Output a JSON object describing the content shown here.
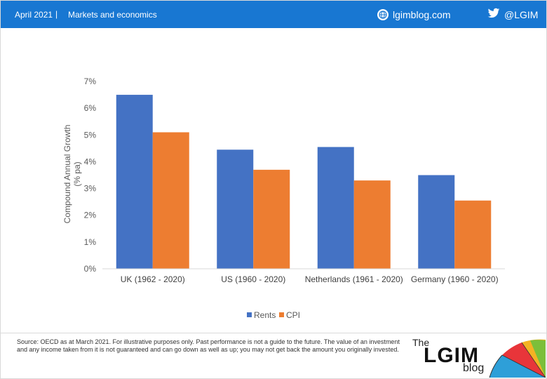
{
  "header": {
    "date": "April 2021",
    "separator": "|",
    "section": "Markets and economics",
    "site": "lgimblog.com",
    "twitter": "@LGIM",
    "background": "#1877d2"
  },
  "chart_data": {
    "type": "bar",
    "categories": [
      "UK (1962 - 2020)",
      "US (1960 - 2020)",
      "Netherlands (1961 - 2020)",
      "Germany (1960 - 2020)"
    ],
    "series": [
      {
        "name": "Rents",
        "values": [
          6.5,
          4.45,
          4.55,
          3.5
        ],
        "color": "#4472c4"
      },
      {
        "name": "CPI",
        "values": [
          5.1,
          3.7,
          3.3,
          2.55
        ],
        "color": "#ed7d31"
      }
    ],
    "ylabel_line1": "Compound Annual Growth",
    "ylabel_line2": "(% pa)",
    "ylim": [
      0,
      7
    ],
    "yticks": [
      "0%",
      "1%",
      "2%",
      "3%",
      "4%",
      "5%",
      "6%",
      "7%"
    ],
    "grid": false,
    "legend_position": "bottom"
  },
  "footer": {
    "source_line1": "Source: OECD as at March 2021. For illustrative purposes only. Past performance is not a guide to the future. The value of an investment",
    "source_line2": "and any income taken from it is not guaranteed and can go down as well as up; you may not get back the amount you originally invested.",
    "logo_the": "The",
    "logo_name": "LGIM",
    "logo_blog": "blog"
  }
}
